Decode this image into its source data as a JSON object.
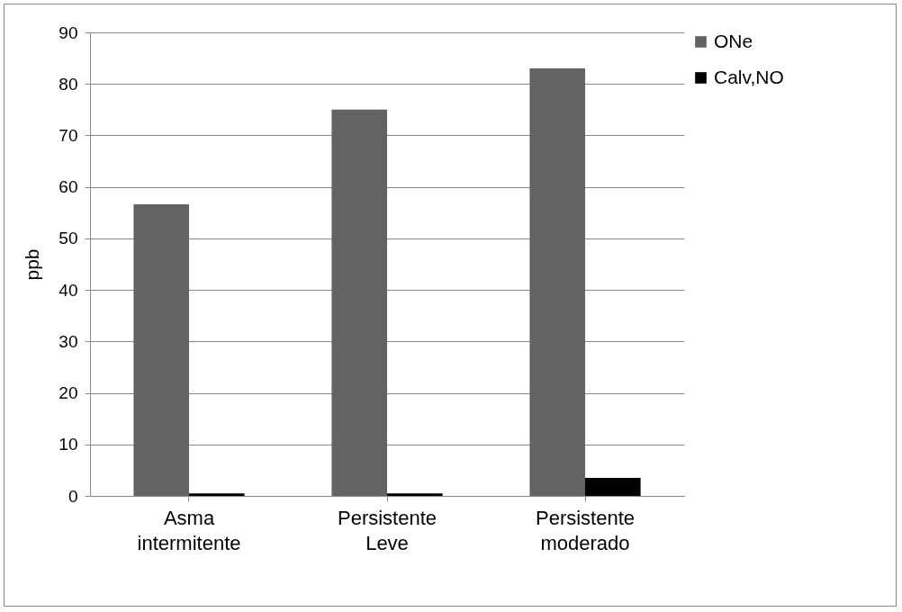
{
  "chart_data": {
    "type": "bar",
    "ylabel": "ppb",
    "categories": [
      "Asma intermitente",
      "Persistente Leve",
      "Persistente moderado"
    ],
    "series": [
      {
        "name": "ONe",
        "color": "#636363",
        "values": [
          56.6,
          75,
          83
        ]
      },
      {
        "name": "Calv,NO",
        "color": "#000000",
        "values": [
          0.5,
          0.5,
          3.5
        ]
      }
    ],
    "ylim": [
      0,
      90
    ],
    "yticks": [
      0,
      10,
      20,
      30,
      40,
      50,
      60,
      70,
      80,
      90
    ],
    "grid": "y",
    "legend": "right"
  }
}
